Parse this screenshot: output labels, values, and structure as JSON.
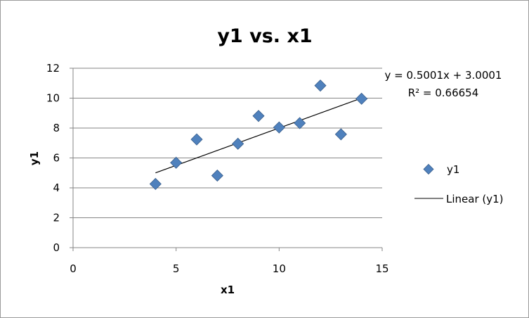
{
  "chart_data": {
    "type": "scatter",
    "title": "y1 vs. x1",
    "xlabel": "x1",
    "ylabel": "y1",
    "xlim": [
      0,
      15
    ],
    "ylim": [
      0,
      12
    ],
    "x_ticks": [
      0,
      5,
      10,
      15
    ],
    "y_ticks": [
      0,
      2,
      4,
      6,
      8,
      10,
      12
    ],
    "grid": "horizontal",
    "legend_position": "right",
    "series": [
      {
        "name": "y1",
        "marker": "diamond",
        "color": "#4F81BD",
        "x": [
          4,
          5,
          6,
          7,
          8,
          9,
          10,
          11,
          12,
          13,
          14
        ],
        "y": [
          4.26,
          5.68,
          7.24,
          4.82,
          6.95,
          8.81,
          8.04,
          8.33,
          10.84,
          7.58,
          9.96
        ]
      }
    ],
    "trendline": {
      "name": "Linear (y1)",
      "type": "linear",
      "slope": 0.5001,
      "intercept": 3.0001,
      "x_range": [
        4,
        14
      ],
      "color": "#000000"
    },
    "annotations": {
      "equation": "y = 0.5001x + 3.0001",
      "r_squared": "R² = 0.66654"
    },
    "legend": {
      "items": [
        "y1",
        "Linear (y1)"
      ]
    }
  }
}
